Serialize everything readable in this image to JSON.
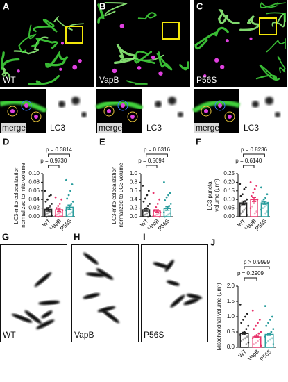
{
  "images": [
    {
      "letter": "A",
      "label": "WT",
      "merge": "merge",
      "lc3": "LC3"
    },
    {
      "letter": "B",
      "label": "VapB",
      "merge": "merge",
      "lc3": "LC3"
    },
    {
      "letter": "C",
      "label": "P56S",
      "merge": "merge",
      "lc3": "LC3"
    }
  ],
  "blob_panels": [
    {
      "letter": "G",
      "label": "WT"
    },
    {
      "letter": "H",
      "label": "VapB"
    },
    {
      "letter": "I",
      "label": "P56S"
    }
  ],
  "chart_data": [
    {
      "type": "bar",
      "panel": "D",
      "y_label": [
        "LC3-mito colocalization",
        "normalized to mito volume"
      ],
      "categories": [
        "WT",
        "VapB",
        "P56S"
      ],
      "colors": [
        "#222222",
        "#e8336b",
        "#2a9d9d"
      ],
      "values": [
        0.017,
        0.016,
        0.022
      ],
      "errors": [
        0.004,
        0.004,
        0.005
      ],
      "points": [
        [
          0.06,
          0.05,
          0.048,
          0.04,
          0.035,
          0.03,
          0.025,
          0.02,
          0.018,
          0.015,
          0.012,
          0.01,
          0.008,
          0.005,
          0.003,
          0.002,
          0.001,
          0
        ],
        [
          0.045,
          0.04,
          0.03,
          0.025,
          0.02,
          0.015,
          0.01,
          0.008,
          0.005,
          0.003,
          0.002,
          0.001,
          0
        ],
        [
          0.085,
          0.075,
          0.06,
          0.05,
          0.042,
          0.035,
          0.03,
          0.025,
          0.02,
          0.015,
          0.01,
          0.008,
          0.005,
          0.003,
          0.001
        ]
      ],
      "p_labels": [
        "p = 0.9730",
        "p = 0.3814"
      ],
      "ylim": [
        0,
        0.1
      ],
      "yticks": [
        {
          "value": 0,
          "label": "0.00"
        },
        {
          "value": 0.02,
          "label": "0.02"
        },
        {
          "value": 0.04,
          "label": "0.04"
        },
        {
          "value": 0.06,
          "label": "0.06"
        },
        {
          "value": 0.08,
          "label": "0.08"
        },
        {
          "value": 0.1,
          "label": "0.10"
        }
      ]
    },
    {
      "type": "bar",
      "panel": "E",
      "y_label": [
        "LC3-mito colocalization",
        "normalized to LC3 volume"
      ],
      "categories": [
        "WT",
        "VapB",
        "P56S"
      ],
      "colors": [
        "#222222",
        "#e8336b",
        "#2a9d9d"
      ],
      "values": [
        0.16,
        0.13,
        0.19
      ],
      "errors": [
        0.03,
        0.03,
        0.04
      ],
      "points": [
        [
          0.72,
          0.6,
          0.5,
          0.42,
          0.35,
          0.3,
          0.25,
          0.2,
          0.15,
          0.12,
          0.1,
          0.08,
          0.05,
          0.03,
          0.02,
          0
        ],
        [
          0.55,
          0.4,
          0.3,
          0.22,
          0.15,
          0.1,
          0.08,
          0.05,
          0.03,
          0.02,
          0
        ],
        [
          0.8,
          0.55,
          0.5,
          0.45,
          0.38,
          0.3,
          0.25,
          0.2,
          0.15,
          0.1,
          0.08,
          0.05,
          0.02,
          0
        ]
      ],
      "p_labels": [
        "p = 0.5694",
        "p = 0.6316"
      ],
      "ylim": [
        0,
        1
      ],
      "yticks": [
        {
          "value": 0,
          "label": "0.0"
        },
        {
          "value": 0.2,
          "label": "0.2"
        },
        {
          "value": 0.4,
          "label": "0.4"
        },
        {
          "value": 0.6,
          "label": "0.6"
        },
        {
          "value": 0.8,
          "label": "0.8"
        },
        {
          "value": 1,
          "label": "1.0"
        }
      ]
    },
    {
      "type": "bar",
      "panel": "F",
      "y_label": [
        "LC3 punctal",
        "volume (μm³)"
      ],
      "categories": [
        "WT",
        "VapB",
        "P56S"
      ],
      "colors": [
        "#222222",
        "#e8336b",
        "#2a9d9d"
      ],
      "values": [
        0.08,
        0.1,
        0.08
      ],
      "errors": [
        0.01,
        0.012,
        0.008
      ],
      "points": [
        [
          0.19,
          0.17,
          0.16,
          0.13,
          0.12,
          0.1,
          0.09,
          0.08,
          0.07,
          0.06,
          0.05,
          0.04,
          0.03,
          0.02,
          0.01
        ],
        [
          0.2,
          0.18,
          0.16,
          0.14,
          0.12,
          0.1,
          0.09,
          0.08,
          0.06,
          0.05,
          0.03,
          0.02
        ],
        [
          0.17,
          0.13,
          0.11,
          0.1,
          0.09,
          0.08,
          0.07,
          0.06,
          0.05,
          0.04,
          0.03,
          0.02
        ]
      ],
      "p_labels": [
        "p = 0.6140",
        "p = 0.8236"
      ],
      "ylim": [
        0,
        0.25
      ],
      "yticks": [
        {
          "value": 0,
          "label": "0.00"
        },
        {
          "value": 0.05,
          "label": "0.05"
        },
        {
          "value": 0.1,
          "label": "0.10"
        },
        {
          "value": 0.15,
          "label": "0.15"
        },
        {
          "value": 0.2,
          "label": "0.20"
        },
        {
          "value": 0.25,
          "label": "0.25"
        }
      ]
    },
    {
      "type": "bar",
      "panel": "J",
      "y_label": [
        "Mitochondrial volume (μm³)"
      ],
      "categories": [
        "WT",
        "VapB",
        "P56S"
      ],
      "colors": [
        "#222222",
        "#e8336b",
        "#2a9d9d"
      ],
      "values": [
        0.45,
        0.34,
        0.42
      ],
      "errors": [
        0.04,
        0.02,
        0.03
      ],
      "points": [
        [
          1.4,
          1.1,
          1.0,
          0.9,
          0.8,
          0.7,
          0.6,
          0.5,
          0.45,
          0.4,
          0.35,
          0.3,
          0.25,
          0.2,
          0.15,
          0.1
        ],
        [
          1.2,
          0.9,
          0.8,
          0.7,
          0.6,
          0.5,
          0.45,
          0.4,
          0.35,
          0.3,
          0.25,
          0.2,
          0.15,
          0.1,
          0.05
        ],
        [
          1.35,
          1.0,
          0.9,
          0.8,
          0.7,
          0.6,
          0.5,
          0.45,
          0.4,
          0.35,
          0.3,
          0.25,
          0.2,
          0.15,
          0.1
        ]
      ],
      "p_labels": [
        "p = 0.2909",
        "p > 0.9999"
      ],
      "ylim": [
        0,
        2
      ],
      "yticks": [
        {
          "value": 0,
          "label": "0.0"
        },
        {
          "value": 0.5,
          "label": "0.5"
        },
        {
          "value": 1,
          "label": "1.0"
        },
        {
          "value": 1.5,
          "label": "1.5"
        },
        {
          "value": 2,
          "label": "2.0"
        }
      ]
    }
  ]
}
